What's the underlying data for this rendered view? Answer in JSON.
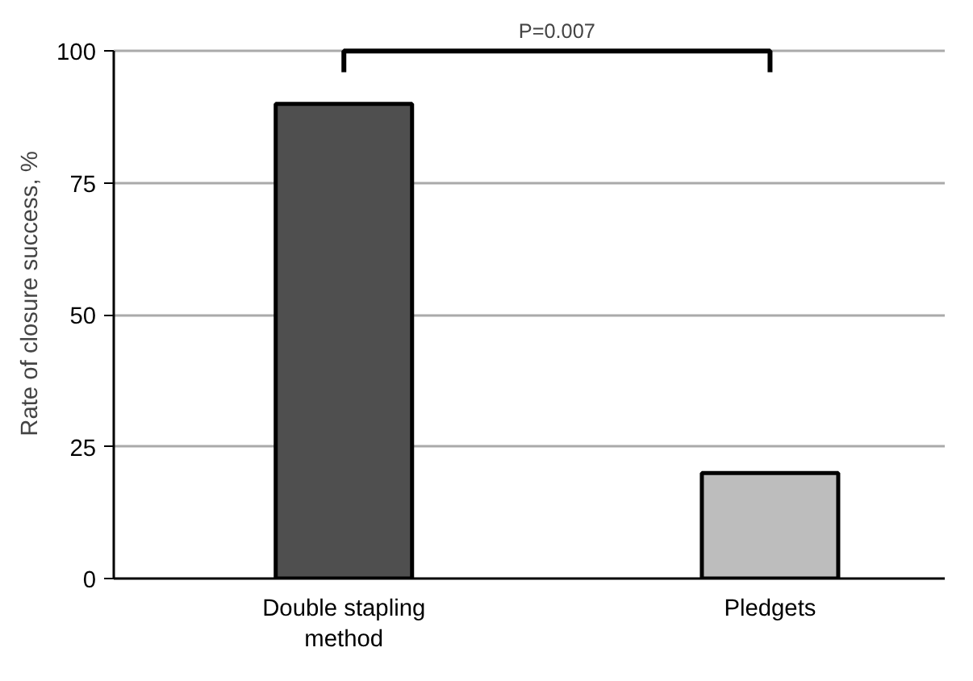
{
  "chart_data": {
    "type": "bar",
    "ylabel": "Rate of closure success, %",
    "categories": [
      "Double stapling method",
      "Pledgets"
    ],
    "values": [
      90,
      20
    ],
    "colors": [
      "#4f4f4f",
      "#bdbdbd"
    ],
    "ylim": [
      0,
      100
    ],
    "yticks": [
      0,
      25,
      50,
      75,
      100
    ],
    "grid": "y",
    "annotations": [
      "P=0.007"
    ]
  }
}
